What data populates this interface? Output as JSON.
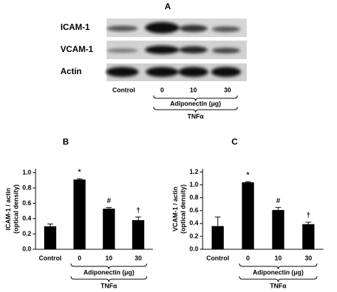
{
  "blot": {
    "label": "A",
    "rows": [
      "ICAM-1",
      "VCAM-1",
      "Actin"
    ],
    "lanes": [
      "Control",
      "0",
      "10",
      "30"
    ],
    "group_label": "Adiponectin (μg)",
    "treatment_label": "TNFα"
  },
  "chart_data": [
    {
      "type": "bar",
      "panel": "B",
      "ylabel": [
        "ICAM-1 / actin",
        "(optical density)"
      ],
      "categories": [
        "Control",
        "0",
        "10",
        "30"
      ],
      "values": [
        0.3,
        0.91,
        0.53,
        0.38
      ],
      "errors": [
        0.03,
        0.01,
        0.015,
        0.04
      ],
      "annotations": [
        null,
        "*",
        "#",
        "†"
      ],
      "group_label": "Adiponectin (μg)",
      "treatment_label": "TNFα",
      "color": "#000000",
      "ylim": [
        0,
        1.05
      ],
      "yticks": [
        {
          "value": 0,
          "label": "0.0"
        },
        0.2,
        0.4,
        0.6,
        0.8,
        {
          "value": 1,
          "label": "1.0"
        }
      ]
    },
    {
      "type": "bar",
      "panel": "C",
      "ylabel": [
        "VCAM-1 / actin",
        "(optical density)"
      ],
      "categories": [
        "Control",
        "0",
        "10",
        "30"
      ],
      "values": [
        0.36,
        1.04,
        0.61,
        0.39
      ],
      "errors": [
        0.14,
        0.01,
        0.04,
        0.03
      ],
      "annotations": [
        null,
        "*",
        "#",
        "†"
      ],
      "group_label": "Adiponectin (μg)",
      "treatment_label": "TNFα",
      "color": "#000000",
      "ylim": [
        0,
        1.25
      ],
      "yticks": [
        {
          "value": 0,
          "label": "0.0"
        },
        0.2,
        0.4,
        0.6,
        0.8,
        {
          "value": 1,
          "label": "1.0"
        },
        1.2
      ]
    }
  ]
}
